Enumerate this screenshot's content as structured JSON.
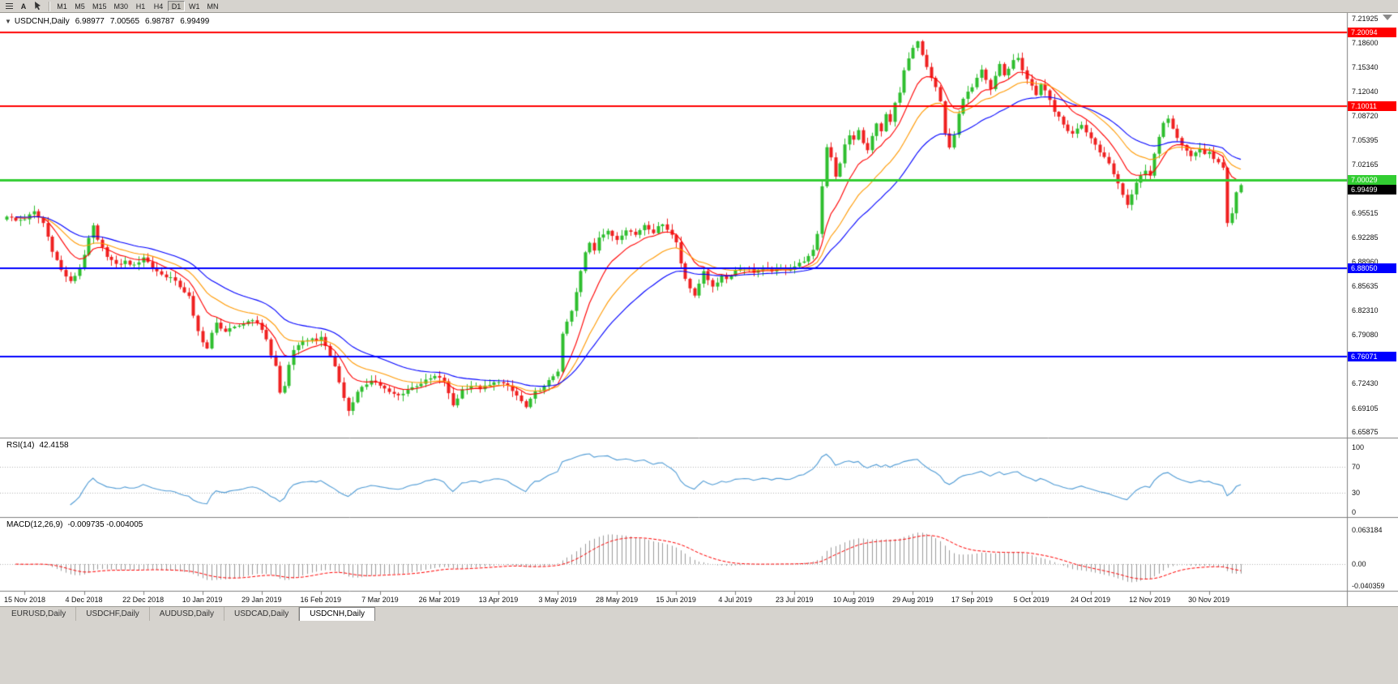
{
  "window": {
    "chrome_bg": "#d6d3ce",
    "chart_bg": "#ffffff",
    "border": "#9c9a94"
  },
  "toolbar": {
    "icons": [
      {
        "name": "charts-list-icon"
      },
      {
        "name": "font-tool-icon",
        "label": "A"
      },
      {
        "name": "cursor-tool-icon"
      }
    ],
    "timeframes": [
      {
        "label": "M1"
      },
      {
        "label": "M5"
      },
      {
        "label": "M15"
      },
      {
        "label": "M30"
      },
      {
        "label": "H1"
      },
      {
        "label": "H4"
      },
      {
        "label": "D1",
        "active": true
      },
      {
        "label": "W1"
      },
      {
        "label": "MN"
      }
    ]
  },
  "chart": {
    "header": {
      "collapse": "▼",
      "title": "USDCNH,Daily",
      "open": "6.98977",
      "high": "7.00565",
      "low": "6.98787",
      "close": "6.99499"
    }
  },
  "rsi": {
    "name": "RSI(14)",
    "value": "42.4158"
  },
  "macd": {
    "name": "MACD(12,26,9)",
    "value": "-0.009735 -0.004005"
  },
  "tabs": [
    {
      "label": "EURUSD,Daily"
    },
    {
      "label": "USDCHF,Daily"
    },
    {
      "label": "AUDUSD,Daily"
    },
    {
      "label": "USDCAD,Daily"
    },
    {
      "label": "USDCNH,Daily",
      "active": true
    }
  ],
  "chart_data": {
    "type": "candlestick",
    "symbol": "USDCNH",
    "timeframe": "Daily",
    "bars": 272,
    "current_ohlc": {
      "open": 6.98977,
      "high": 7.00565,
      "low": 6.98787,
      "close": 6.99499
    },
    "y_axis": {
      "labels": [
        "7.21925",
        "7.18600",
        "7.15340",
        "7.12040",
        "7.08720",
        "7.05395",
        "7.02165",
        "6.98865",
        "6.95515",
        "6.92285",
        "6.88960",
        "6.85635",
        "6.82310",
        "6.79080",
        "6.75760",
        "6.72430",
        "6.69105",
        "6.65875"
      ]
    },
    "x_axis": {
      "labels": [
        "15 Nov 2018",
        "4 Dec 2018",
        "22 Dec 2018",
        "10 Jan 2019",
        "29 Jan 2019",
        "16 Feb 2019",
        "7 Mar 2019",
        "26 Mar 2019",
        "13 Apr 2019",
        "3 May 2019",
        "28 May 2019",
        "15 Jun 2019",
        "4 Jul 2019",
        "23 Jul 2019",
        "10 Aug 2019",
        "29 Aug 2019",
        "17 Sep 2019",
        "5 Oct 2019",
        "24 Oct 2019",
        "12 Nov 2019",
        "30 Nov 2019"
      ],
      "first_label_bar": 4,
      "label_step_bars": 13
    },
    "close_anchors": [
      [
        0,
        6.952
      ],
      [
        2,
        6.945
      ],
      [
        4,
        6.948
      ],
      [
        6,
        6.957
      ],
      [
        8,
        6.942
      ],
      [
        10,
        6.905
      ],
      [
        12,
        6.878
      ],
      [
        14,
        6.862
      ],
      [
        16,
        6.88
      ],
      [
        18,
        6.92
      ],
      [
        19,
        6.938
      ],
      [
        20,
        6.918
      ],
      [
        22,
        6.898
      ],
      [
        24,
        6.885
      ],
      [
        26,
        6.89
      ],
      [
        28,
        6.884
      ],
      [
        30,
        6.896
      ],
      [
        32,
        6.882
      ],
      [
        34,
        6.872
      ],
      [
        36,
        6.868
      ],
      [
        38,
        6.856
      ],
      [
        40,
        6.842
      ],
      [
        41,
        6.815
      ],
      [
        42,
        6.795
      ],
      [
        43,
        6.782
      ],
      [
        44,
        6.772
      ],
      [
        45,
        6.792
      ],
      [
        46,
        6.806
      ],
      [
        48,
        6.795
      ],
      [
        50,
        6.8
      ],
      [
        52,
        6.806
      ],
      [
        54,
        6.812
      ],
      [
        56,
        6.798
      ],
      [
        57,
        6.785
      ],
      [
        58,
        6.762
      ],
      [
        59,
        6.748
      ],
      [
        60,
        6.712
      ],
      [
        61,
        6.722
      ],
      [
        62,
        6.748
      ],
      [
        63,
        6.768
      ],
      [
        64,
        6.778
      ],
      [
        66,
        6.785
      ],
      [
        68,
        6.782
      ],
      [
        69,
        6.788
      ],
      [
        70,
        6.775
      ],
      [
        71,
        6.762
      ],
      [
        72,
        6.748
      ],
      [
        73,
        6.728
      ],
      [
        74,
        6.704
      ],
      [
        75,
        6.688
      ],
      [
        76,
        6.7
      ],
      [
        77,
        6.712
      ],
      [
        78,
        6.718
      ],
      [
        80,
        6.73
      ],
      [
        82,
        6.722
      ],
      [
        84,
        6.712
      ],
      [
        86,
        6.708
      ],
      [
        88,
        6.716
      ],
      [
        90,
        6.722
      ],
      [
        92,
        6.728
      ],
      [
        94,
        6.734
      ],
      [
        96,
        6.728
      ],
      [
        97,
        6.71
      ],
      [
        98,
        6.695
      ],
      [
        99,
        6.705
      ],
      [
        100,
        6.716
      ],
      [
        102,
        6.722
      ],
      [
        104,
        6.718
      ],
      [
        106,
        6.722
      ],
      [
        108,
        6.728
      ],
      [
        110,
        6.72
      ],
      [
        112,
        6.708
      ],
      [
        114,
        6.692
      ],
      [
        115,
        6.702
      ],
      [
        116,
        6.712
      ],
      [
        118,
        6.72
      ],
      [
        120,
        6.735
      ],
      [
        121,
        6.742
      ],
      [
        122,
        6.79
      ],
      [
        123,
        6.808
      ],
      [
        124,
        6.822
      ],
      [
        125,
        6.848
      ],
      [
        126,
        6.876
      ],
      [
        127,
        6.902
      ],
      [
        128,
        6.916
      ],
      [
        129,
        6.906
      ],
      [
        130,
        6.924
      ],
      [
        132,
        6.93
      ],
      [
        134,
        6.92
      ],
      [
        136,
        6.934
      ],
      [
        138,
        6.926
      ],
      [
        140,
        6.94
      ],
      [
        142,
        6.93
      ],
      [
        144,
        6.942
      ],
      [
        146,
        6.926
      ],
      [
        147,
        6.916
      ],
      [
        148,
        6.888
      ],
      [
        149,
        6.868
      ],
      [
        150,
        6.854
      ],
      [
        151,
        6.842
      ],
      [
        152,
        6.86
      ],
      [
        153,
        6.878
      ],
      [
        154,
        6.866
      ],
      [
        155,
        6.854
      ],
      [
        156,
        6.862
      ],
      [
        157,
        6.872
      ],
      [
        158,
        6.866
      ],
      [
        160,
        6.878
      ],
      [
        162,
        6.882
      ],
      [
        164,
        6.876
      ],
      [
        166,
        6.88
      ],
      [
        168,
        6.878
      ],
      [
        170,
        6.88
      ],
      [
        172,
        6.88
      ],
      [
        174,
        6.887
      ],
      [
        176,
        6.896
      ],
      [
        177,
        6.904
      ],
      [
        178,
        6.928
      ],
      [
        179,
        6.992
      ],
      [
        180,
        7.046
      ],
      [
        181,
        7.032
      ],
      [
        182,
        7.006
      ],
      [
        183,
        7.022
      ],
      [
        184,
        7.048
      ],
      [
        185,
        7.062
      ],
      [
        186,
        7.054
      ],
      [
        187,
        7.068
      ],
      [
        188,
        7.05
      ],
      [
        189,
        7.04
      ],
      [
        190,
        7.062
      ],
      [
        191,
        7.076
      ],
      [
        192,
        7.066
      ],
      [
        193,
        7.088
      ],
      [
        194,
        7.078
      ],
      [
        195,
        7.104
      ],
      [
        196,
        7.118
      ],
      [
        197,
        7.148
      ],
      [
        198,
        7.165
      ],
      [
        199,
        7.18
      ],
      [
        200,
        7.188
      ],
      [
        201,
        7.17
      ],
      [
        202,
        7.152
      ],
      [
        203,
        7.138
      ],
      [
        204,
        7.128
      ],
      [
        205,
        7.108
      ],
      [
        206,
        7.062
      ],
      [
        207,
        7.044
      ],
      [
        208,
        7.06
      ],
      [
        209,
        7.092
      ],
      [
        210,
        7.112
      ],
      [
        211,
        7.122
      ],
      [
        212,
        7.128
      ],
      [
        213,
        7.14
      ],
      [
        214,
        7.15
      ],
      [
        215,
        7.136
      ],
      [
        216,
        7.124
      ],
      [
        217,
        7.142
      ],
      [
        218,
        7.156
      ],
      [
        219,
        7.144
      ],
      [
        220,
        7.15
      ],
      [
        221,
        7.162
      ],
      [
        222,
        7.164
      ],
      [
        223,
        7.148
      ],
      [
        224,
        7.136
      ],
      [
        225,
        7.128
      ],
      [
        226,
        7.116
      ],
      [
        227,
        7.13
      ],
      [
        228,
        7.122
      ],
      [
        229,
        7.108
      ],
      [
        230,
        7.094
      ],
      [
        231,
        7.086
      ],
      [
        232,
        7.076
      ],
      [
        233,
        7.068
      ],
      [
        234,
        7.062
      ],
      [
        235,
        7.07
      ],
      [
        236,
        7.074
      ],
      [
        237,
        7.066
      ],
      [
        238,
        7.058
      ],
      [
        239,
        7.048
      ],
      [
        240,
        7.036
      ],
      [
        241,
        7.03
      ],
      [
        242,
        7.022
      ],
      [
        243,
        7.01
      ],
      [
        244,
        6.994
      ],
      [
        245,
        6.98
      ],
      [
        246,
        6.968
      ],
      [
        247,
        6.98
      ],
      [
        248,
        6.998
      ],
      [
        249,
        7.008
      ],
      [
        250,
        7.014
      ],
      [
        251,
        7.008
      ],
      [
        252,
        7.036
      ],
      [
        253,
        7.06
      ],
      [
        254,
        7.078
      ],
      [
        255,
        7.084
      ],
      [
        256,
        7.072
      ],
      [
        257,
        7.058
      ],
      [
        258,
        7.046
      ],
      [
        259,
        7.04
      ],
      [
        260,
        7.034
      ],
      [
        261,
        7.038
      ],
      [
        262,
        7.042
      ],
      [
        263,
        7.036
      ],
      [
        264,
        7.04
      ],
      [
        265,
        7.028
      ],
      [
        266,
        7.024
      ],
      [
        267,
        7.018
      ],
      [
        268,
        6.942
      ],
      [
        269,
        6.956
      ],
      [
        270,
        6.984
      ],
      [
        271,
        6.995
      ]
    ],
    "horizontal_lines": [
      {
        "value": 7.20094,
        "label": "7.20094",
        "color": "#ff0000",
        "width": 2
      },
      {
        "value": 7.10011,
        "label": "7.10011",
        "color": "#ff0000",
        "width": 2
      },
      {
        "value": 7.00029,
        "label": "7.00029",
        "color": "#32cd32",
        "width": 3
      },
      {
        "value": 6.8805,
        "label": "6.88050",
        "color": "#0000ff",
        "width": 2
      },
      {
        "value": 6.76071,
        "label": "6.76071",
        "color": "#0000ff",
        "width": 2
      }
    ],
    "bid": {
      "value": 6.99499,
      "label": "6.99499",
      "color": "#000000"
    },
    "moving_averages": [
      {
        "name": "fast",
        "period": 10,
        "color": "#ff0000"
      },
      {
        "name": "medium",
        "period": 20,
        "color": "#ff9900"
      },
      {
        "name": "slow",
        "period": 34,
        "color": "#0000ff"
      }
    ],
    "indicators": [
      {
        "type": "RSI",
        "period": 14,
        "current": 42.4158,
        "levels": [
          70,
          30
        ],
        "axis_labels": [
          "100",
          "70",
          "30",
          "0"
        ],
        "color": "#4f9bd5"
      },
      {
        "type": "MACD",
        "fast": 12,
        "slow": 26,
        "signal": 9,
        "current_macd": -0.009735,
        "current_signal": -0.004005,
        "axis_labels": [
          "0.063184",
          "0.00",
          "-0.040359"
        ],
        "histogram_color": "#9a9a9a",
        "signal_color": "#ff0000"
      }
    ],
    "style": {
      "bull": "#2ebe2e",
      "bear": "#ef2020",
      "background": "#ffffff",
      "axis_text": "#000000",
      "separator": "#808080"
    }
  }
}
